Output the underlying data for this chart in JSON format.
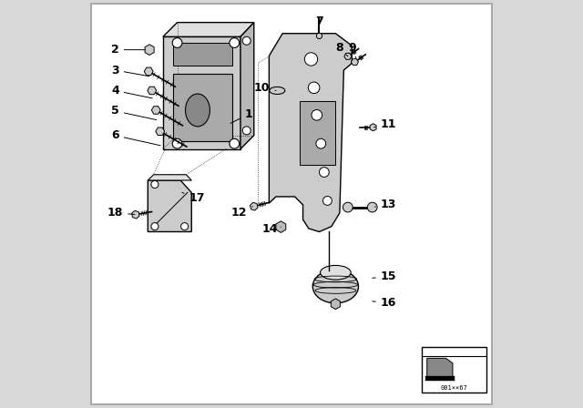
{
  "bg_color": "#ffffff",
  "fig_bg": "#d8d8d8",
  "line_color": "#000000",
  "part_color": "#d0d0d0",
  "font_size_labels": 9,
  "label_positions": {
    "1": [
      0.395,
      0.72,
      0.345,
      0.695
    ],
    "2": [
      0.068,
      0.878,
      0.148,
      0.878
    ],
    "3": [
      0.068,
      0.828,
      0.158,
      0.812
    ],
    "4": [
      0.068,
      0.778,
      0.165,
      0.758
    ],
    "5": [
      0.068,
      0.728,
      0.175,
      0.705
    ],
    "6": [
      0.068,
      0.668,
      0.185,
      0.642
    ],
    "7": [
      0.568,
      0.948,
      0.568,
      0.912
    ],
    "8": [
      0.618,
      0.882,
      0.638,
      0.862
    ],
    "9": [
      0.648,
      0.882,
      0.658,
      0.858
    ],
    "10": [
      0.428,
      0.785,
      0.462,
      0.778
    ],
    "11": [
      0.738,
      0.695,
      0.702,
      0.688
    ],
    "12": [
      0.372,
      0.478,
      0.405,
      0.494
    ],
    "13": [
      0.738,
      0.498,
      0.698,
      0.492
    ],
    "14": [
      0.448,
      0.438,
      0.474,
      0.444
    ],
    "15": [
      0.738,
      0.322,
      0.692,
      0.318
    ],
    "16": [
      0.738,
      0.258,
      0.692,
      0.262
    ],
    "17": [
      0.268,
      0.515,
      0.232,
      0.528
    ],
    "18": [
      0.068,
      0.478,
      0.122,
      0.474
    ]
  }
}
